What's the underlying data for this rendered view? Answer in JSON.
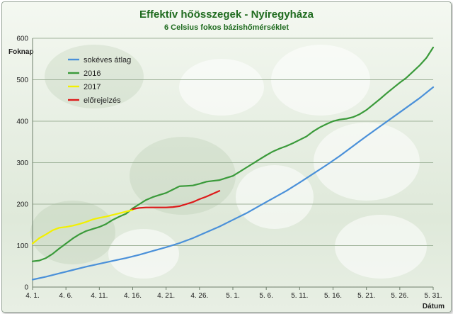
{
  "chart_data": {
    "type": "line",
    "title": "Effektív hőösszegek - Nyíregyháza",
    "subtitle": "6 Celsius fokos bázishőmérséklet",
    "ylabel": "Foknap",
    "xlabel": "Dátum",
    "ylim": [
      0,
      600
    ],
    "yticks": [
      0,
      100,
      200,
      300,
      400,
      500,
      600
    ],
    "xlim": [
      0,
      60
    ],
    "xticks": [
      {
        "x": 0,
        "label": "4. 1."
      },
      {
        "x": 5,
        "label": "4. 6."
      },
      {
        "x": 10,
        "label": "4. 11."
      },
      {
        "x": 15,
        "label": "4. 16."
      },
      {
        "x": 20,
        "label": "4. 21."
      },
      {
        "x": 25,
        "label": "4. 26."
      },
      {
        "x": 30,
        "label": "5. 1."
      },
      {
        "x": 35,
        "label": "5. 6."
      },
      {
        "x": 40,
        "label": "5. 11."
      },
      {
        "x": 45,
        "label": "5. 16."
      },
      {
        "x": 50,
        "label": "5. 21."
      },
      {
        "x": 55,
        "label": "5. 26."
      },
      {
        "x": 60,
        "label": "5. 31."
      }
    ],
    "grid": true,
    "legend_position": "top-left",
    "series": [
      {
        "name": "sokéves átlag",
        "color": "#4a90d9",
        "points": [
          [
            0,
            18
          ],
          [
            2,
            25
          ],
          [
            4,
            33
          ],
          [
            6,
            41
          ],
          [
            8,
            49
          ],
          [
            10,
            56
          ],
          [
            12,
            63
          ],
          [
            14,
            70
          ],
          [
            16,
            78
          ],
          [
            18,
            87
          ],
          [
            20,
            96
          ],
          [
            22,
            106
          ],
          [
            24,
            118
          ],
          [
            26,
            132
          ],
          [
            28,
            146
          ],
          [
            30,
            162
          ],
          [
            32,
            178
          ],
          [
            34,
            196
          ],
          [
            36,
            214
          ],
          [
            38,
            232
          ],
          [
            40,
            252
          ],
          [
            42,
            273
          ],
          [
            44,
            294
          ],
          [
            46,
            316
          ],
          [
            48,
            340
          ],
          [
            50,
            364
          ],
          [
            52,
            387
          ],
          [
            54,
            410
          ],
          [
            56,
            433
          ],
          [
            58,
            456
          ],
          [
            60,
            482
          ]
        ]
      },
      {
        "name": "2016",
        "color": "#3a9a3a",
        "points": [
          [
            0,
            62
          ],
          [
            1,
            64
          ],
          [
            2,
            70
          ],
          [
            3,
            80
          ],
          [
            4,
            93
          ],
          [
            5,
            105
          ],
          [
            6,
            117
          ],
          [
            7,
            127
          ],
          [
            8,
            135
          ],
          [
            9,
            140
          ],
          [
            10,
            145
          ],
          [
            11,
            152
          ],
          [
            12,
            162
          ],
          [
            13,
            170
          ],
          [
            14,
            177
          ],
          [
            15,
            190
          ],
          [
            16,
            200
          ],
          [
            17,
            210
          ],
          [
            18,
            217
          ],
          [
            19,
            222
          ],
          [
            20,
            227
          ],
          [
            21,
            235
          ],
          [
            22,
            243
          ],
          [
            23,
            244
          ],
          [
            24,
            245
          ],
          [
            25,
            249
          ],
          [
            26,
            254
          ],
          [
            27,
            256
          ],
          [
            28,
            258
          ],
          [
            29,
            263
          ],
          [
            30,
            268
          ],
          [
            31,
            278
          ],
          [
            32,
            288
          ],
          [
            33,
            298
          ],
          [
            34,
            308
          ],
          [
            35,
            318
          ],
          [
            36,
            327
          ],
          [
            37,
            334
          ],
          [
            38,
            340
          ],
          [
            39,
            347
          ],
          [
            40,
            355
          ],
          [
            41,
            363
          ],
          [
            42,
            375
          ],
          [
            43,
            385
          ],
          [
            44,
            393
          ],
          [
            45,
            400
          ],
          [
            46,
            404
          ],
          [
            47,
            406
          ],
          [
            48,
            410
          ],
          [
            49,
            417
          ],
          [
            50,
            427
          ],
          [
            51,
            440
          ],
          [
            52,
            453
          ],
          [
            53,
            467
          ],
          [
            54,
            480
          ],
          [
            55,
            493
          ],
          [
            56,
            505
          ],
          [
            57,
            520
          ],
          [
            58,
            535
          ],
          [
            59,
            553
          ],
          [
            60,
            578
          ]
        ]
      },
      {
        "name": "2017",
        "color": "#f2f000",
        "points": [
          [
            0,
            105
          ],
          [
            1,
            118
          ],
          [
            2,
            127
          ],
          [
            3,
            137
          ],
          [
            4,
            143
          ],
          [
            5,
            145
          ],
          [
            6,
            148
          ],
          [
            7,
            152
          ],
          [
            8,
            157
          ],
          [
            9,
            163
          ],
          [
            10,
            167
          ],
          [
            11,
            170
          ],
          [
            12,
            174
          ],
          [
            13,
            178
          ],
          [
            14,
            182
          ],
          [
            15,
            186
          ]
        ]
      },
      {
        "name": "előrejelzés",
        "color": "#dd1a1a",
        "points": [
          [
            15,
            188
          ],
          [
            16,
            191
          ],
          [
            17,
            192
          ],
          [
            18,
            192
          ],
          [
            19,
            192
          ],
          [
            20,
            192
          ],
          [
            21,
            193
          ],
          [
            22,
            195
          ],
          [
            23,
            200
          ],
          [
            24,
            205
          ],
          [
            25,
            212
          ],
          [
            26,
            218
          ],
          [
            27,
            225
          ],
          [
            28,
            232
          ]
        ]
      }
    ]
  }
}
